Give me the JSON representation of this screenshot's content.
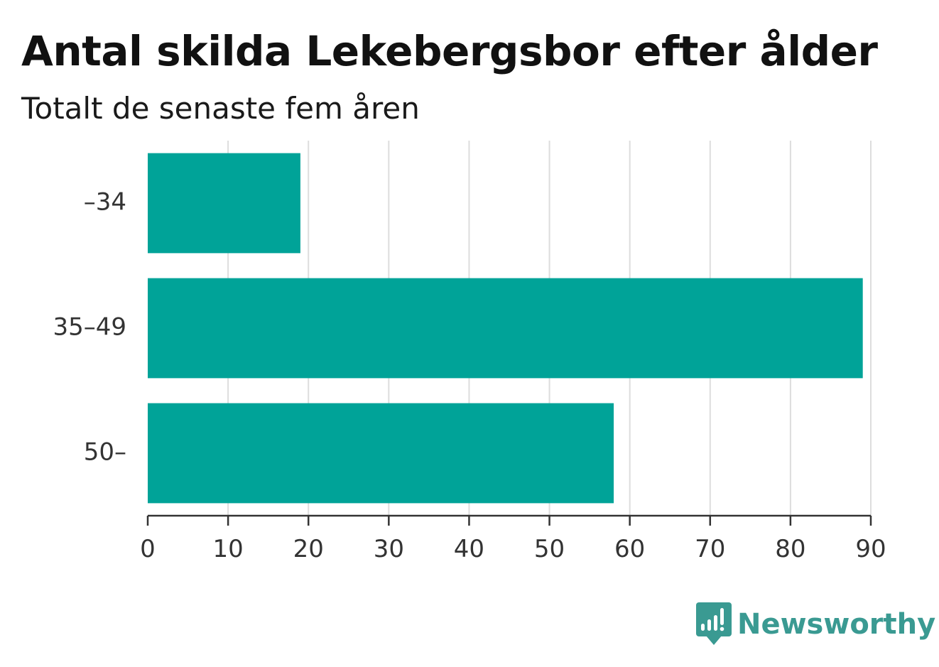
{
  "chart_data": {
    "type": "bar",
    "orientation": "horizontal",
    "title": "Antal skilda Lekebergsbor efter ålder",
    "subtitle": "Totalt de senaste fem åren",
    "categories": [
      "–34",
      "35–49",
      "50–"
    ],
    "values": [
      19,
      89,
      58
    ],
    "xlim": [
      0,
      90
    ],
    "xticks": [
      "0",
      "10",
      "20",
      "30",
      "40",
      "50",
      "60",
      "70",
      "80",
      "90"
    ],
    "grid": "vertical",
    "bar_color": "#00a398",
    "grid_color": "#dddddd",
    "axis_color": "#333333"
  },
  "brand": {
    "name": "Newsworthy",
    "color": "#3a9a92",
    "icon": "newsworthy-logo-icon"
  }
}
